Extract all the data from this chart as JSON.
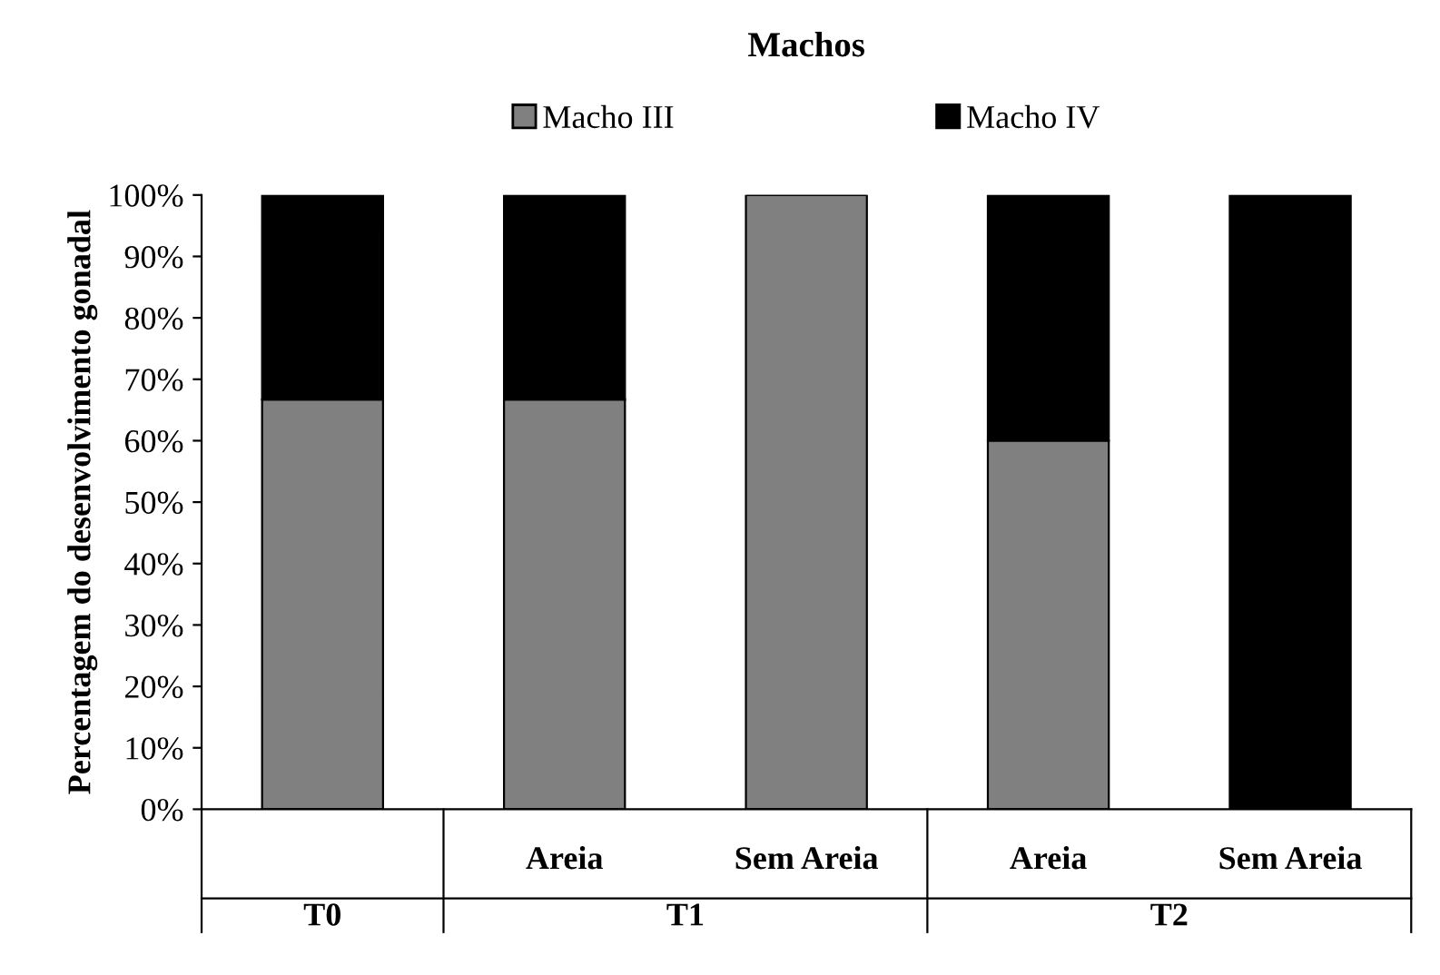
{
  "chart_data": {
    "type": "bar",
    "title": "Machos",
    "ylabel": "Percentagem do desenvolvimento gonadal",
    "stacked": true,
    "legend": "top",
    "categories": [
      null,
      "Areia",
      "Sem Areia",
      "Areia",
      "Sem Areia"
    ],
    "series": [
      {
        "name": "Macho III",
        "color": "#808080",
        "values": [
          66.7,
          66.7,
          100,
          60,
          0
        ]
      },
      {
        "name": "Macho IV",
        "color": "#000000",
        "values": [
          33.3,
          33.3,
          0,
          40,
          100
        ]
      }
    ],
    "ylim": [
      0,
      100
    ],
    "yticks": [
      {
        "value": 0,
        "label": "0%"
      },
      {
        "value": 10,
        "label": "10%"
      },
      {
        "value": 20,
        "label": "20%"
      },
      {
        "value": 30,
        "label": "30%"
      },
      {
        "value": 40,
        "label": "40%"
      },
      {
        "value": 50,
        "label": "50%"
      },
      {
        "value": 60,
        "label": "60%"
      },
      {
        "value": 70,
        "label": "70%"
      },
      {
        "value": 80,
        "label": "80%"
      },
      {
        "value": 90,
        "label": "90%"
      },
      {
        "value": 100,
        "label": "100%"
      }
    ],
    "annotations": [
      "T0",
      "T1",
      "T2"
    ]
  }
}
